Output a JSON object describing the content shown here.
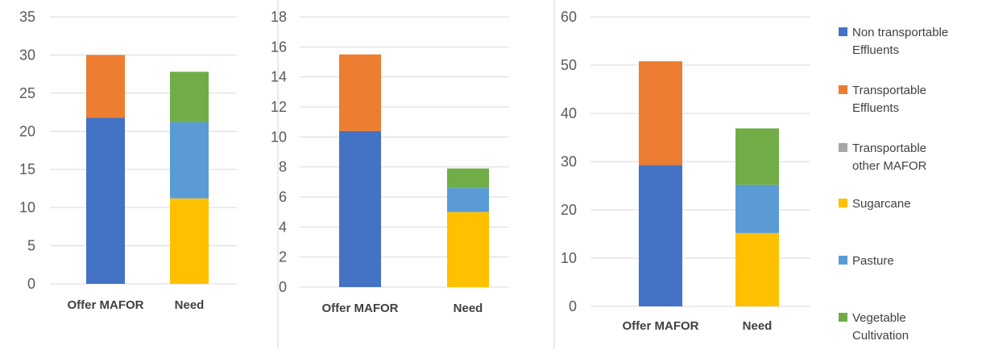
{
  "chart_data": [
    {
      "type": "bar",
      "stacked": true,
      "categories": [
        "Offer MAFOR",
        "Need"
      ],
      "series": [
        {
          "name": "Non transportable Effluents",
          "values": [
            21.8,
            0
          ]
        },
        {
          "name": "Transportable Effluents",
          "values": [
            8.2,
            0
          ]
        },
        {
          "name": "Transportable other MAFOR",
          "values": [
            0,
            0
          ]
        },
        {
          "name": "Sugarcane",
          "values": [
            0,
            11.2
          ]
        },
        {
          "name": "Pasture",
          "values": [
            0,
            10.0
          ]
        },
        {
          "name": "Vegetable Cultivation",
          "values": [
            0,
            6.6
          ]
        }
      ],
      "ylim": [
        0,
        35
      ],
      "yticks": [
        "0",
        "5",
        "10",
        "15",
        "20",
        "25",
        "30",
        "35"
      ],
      "grid": true
    },
    {
      "type": "bar",
      "stacked": true,
      "categories": [
        "Offer MAFOR",
        "Need"
      ],
      "series": [
        {
          "name": "Non transportable Effluents",
          "values": [
            10.4,
            0
          ]
        },
        {
          "name": "Transportable Effluents",
          "values": [
            5.1,
            0
          ]
        },
        {
          "name": "Transportable other MAFOR",
          "values": [
            0,
            0
          ]
        },
        {
          "name": "Sugarcane",
          "values": [
            0,
            5.0
          ]
        },
        {
          "name": "Pasture",
          "values": [
            0,
            1.6
          ]
        },
        {
          "name": "Vegetable Cultivation",
          "values": [
            0,
            1.3
          ]
        }
      ],
      "ylim": [
        0,
        18
      ],
      "yticks": [
        "0",
        "2",
        "4",
        "6",
        "8",
        "10",
        "12",
        "14",
        "16",
        "18"
      ],
      "grid": true
    },
    {
      "type": "bar",
      "stacked": true,
      "categories": [
        "Offer MAFOR",
        "Need"
      ],
      "series": [
        {
          "name": "Non transportable Effluents",
          "values": [
            29.3,
            0
          ]
        },
        {
          "name": "Transportable Effluents",
          "values": [
            21.5,
            0
          ]
        },
        {
          "name": "Transportable other MAFOR",
          "values": [
            0,
            0
          ]
        },
        {
          "name": "Sugarcane",
          "values": [
            0,
            15.2
          ]
        },
        {
          "name": "Pasture",
          "values": [
            0,
            10.0
          ]
        },
        {
          "name": "Vegetable Cultivation",
          "values": [
            0,
            11.7
          ]
        }
      ],
      "ylim": [
        0,
        60
      ],
      "yticks": [
        "0",
        "10",
        "20",
        "30",
        "40",
        "50",
        "60"
      ],
      "grid": true
    }
  ],
  "legend": {
    "placement": "right",
    "items": [
      {
        "lines": [
          "Non transportable",
          "Effluents"
        ],
        "color": "#4472C4"
      },
      {
        "lines": [
          "Transportable",
          "Effluents"
        ],
        "color": "#ED7D31"
      },
      {
        "lines": [
          "Transportable",
          "other MAFOR"
        ],
        "color": "#A5A5A5"
      },
      {
        "lines": [
          "Sugarcane"
        ],
        "color": "#FFC000"
      },
      {
        "lines": [
          "Pasture"
        ],
        "color": "#5B9BD5"
      },
      {
        "lines": [
          "Vegetable",
          "Cultivation"
        ],
        "color": "#70AD47"
      }
    ]
  }
}
